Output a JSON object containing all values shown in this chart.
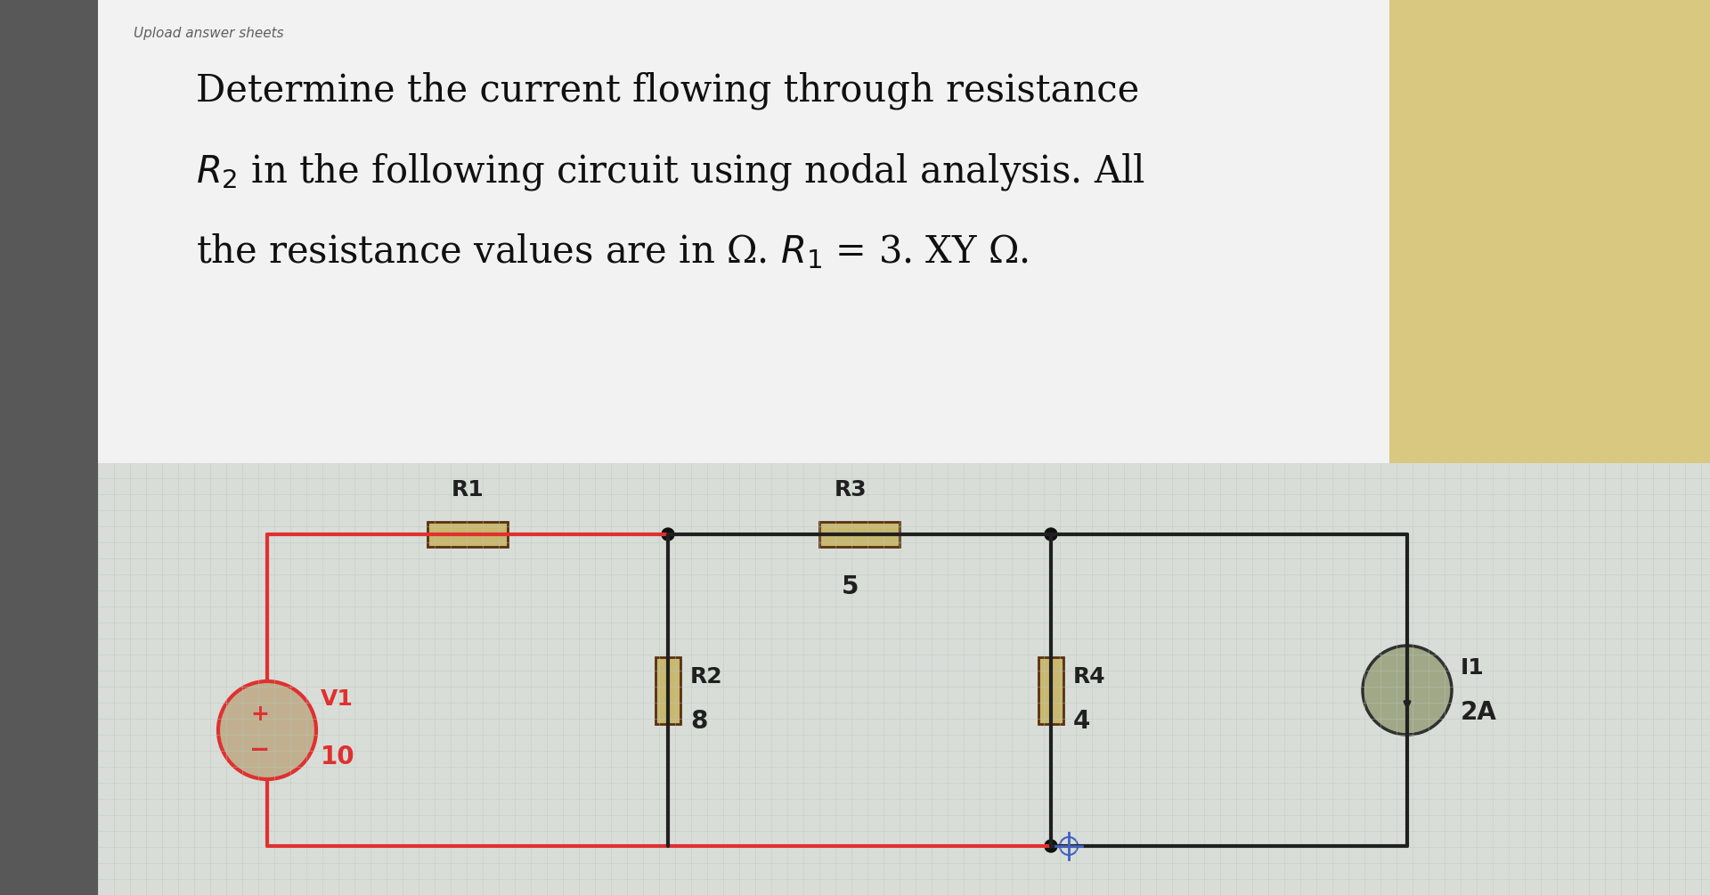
{
  "bg_color": "#c8c8c8",
  "grid_color": "#a0b0a0",
  "white_panel_color": "#f0f0f0",
  "title_text_line1": "Determine the current flowing through resistance",
  "title_text_line2": "$R_2$ in the following circuit using nodal analysis. All",
  "title_text_line3": "the resistance values are in Ω. $R_1$ = 3. XY Ω.",
  "header_text": "Upload answer sheets",
  "circuit_bg": "#d8ddd8",
  "wire_color_red": "#e03030",
  "wire_color_black": "#202020",
  "resistor_fill": "#c8b870",
  "resistor_border": "#5a3010",
  "resistor_border2": "#804020",
  "node_dot_color": "#101010",
  "text_color_black": "#101010",
  "text_color_red": "#e03030",
  "source_circle_color": "#e03030",
  "current_source_color": "#808878",
  "label_fontsize": 18,
  "value_fontsize": 20,
  "title_fontsize": 30
}
